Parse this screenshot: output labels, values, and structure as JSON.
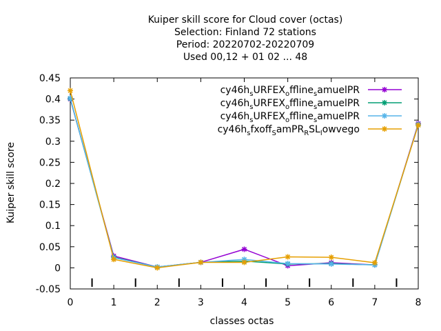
{
  "chart_data": {
    "type": "line",
    "title_lines": [
      "Kuiper skill score  for Cloud cover (octas)",
      "Selection: Finland      72 stations",
      "Period: 20220702-20220709",
      "Used  00,12  + 01 02 ... 48"
    ],
    "xlabel": "classes octas",
    "ylabel": "Kuiper skill score",
    "xlim": [
      0,
      8
    ],
    "ylim": [
      -0.05,
      0.45
    ],
    "x_ticks": [
      "0",
      "1",
      "2",
      "3",
      "4",
      "5",
      "6",
      "7",
      "8"
    ],
    "y_ticks": [
      "-0.05",
      "0",
      "0.05",
      "0.1",
      "0.15",
      "0.2",
      "0.25",
      "0.3",
      "0.35",
      "0.4",
      "0.45"
    ],
    "grid": false,
    "legend_position": "top-right",
    "x": [
      0,
      1,
      2,
      3,
      4,
      5,
      6,
      7,
      8
    ],
    "series": [
      {
        "name_main": "cy46h",
        "name_parts": [
          [
            "s",
            "URFEX"
          ],
          [
            "o",
            "ffline"
          ],
          [
            "s",
            "amuelPR"
          ]
        ],
        "color": "#9400d3",
        "values": [
          0.4,
          0.028,
          0.002,
          0.013,
          0.044,
          0.005,
          0.012,
          0.007,
          0.342
        ]
      },
      {
        "name_main": "cy46h",
        "name_parts": [
          [
            "s",
            "URFEX"
          ],
          [
            "o",
            "ffline"
          ],
          [
            "s",
            "amuelPR"
          ]
        ],
        "color": "#009e73",
        "values": [
          0.401,
          0.025,
          0.002,
          0.013,
          0.016,
          0.009,
          0.01,
          0.007,
          0.34
        ]
      },
      {
        "name_main": "cy46h",
        "name_parts": [
          [
            "s",
            "URFEX"
          ],
          [
            "o",
            "ffline"
          ],
          [
            "s",
            "amuelPR"
          ]
        ],
        "color": "#56b4e9",
        "values": [
          0.402,
          0.024,
          0.002,
          0.013,
          0.02,
          0.01,
          0.009,
          0.007,
          0.34
        ]
      },
      {
        "name_main": "cy46h",
        "name_parts": [
          [
            "s",
            "fxoff"
          ],
          [
            "S",
            "amPR"
          ],
          [
            "R",
            "SL"
          ],
          [
            "l",
            "owvego"
          ]
        ],
        "color": "#e69f00",
        "values": [
          0.42,
          0.02,
          0.0,
          0.013,
          0.013,
          0.026,
          0.025,
          0.012,
          0.338
        ]
      }
    ]
  }
}
